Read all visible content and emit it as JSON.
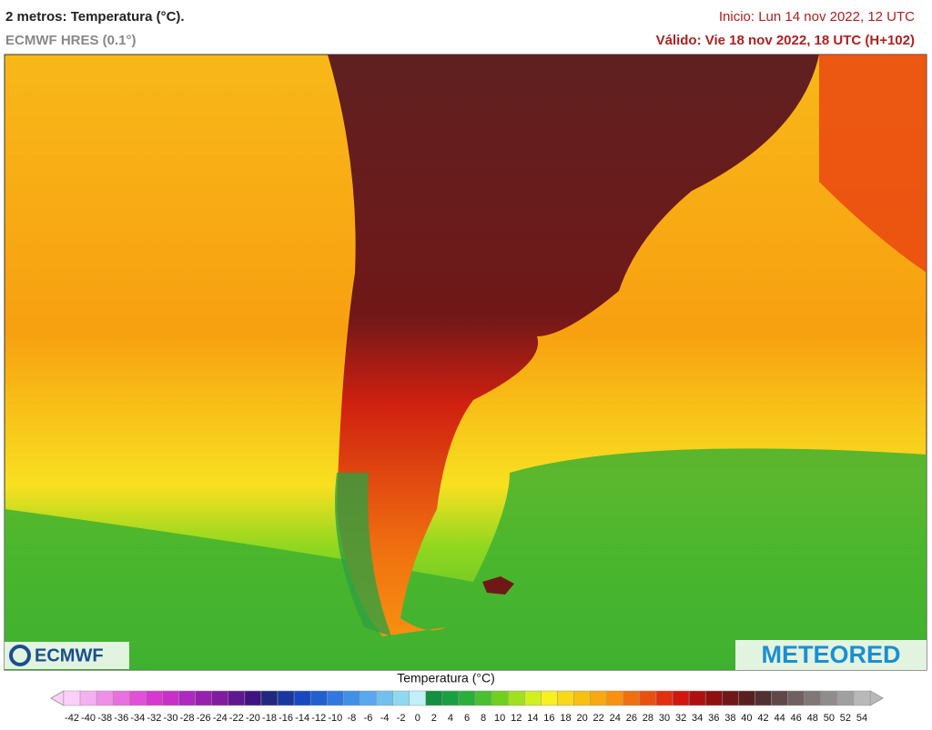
{
  "header": {
    "title": "2 metros: Temperatura (°C).",
    "model": "ECMWF HRES (0.1°)",
    "init": "Inicio: Lun 14 nov 2022, 12 UTC",
    "valid": "Válido: Vie 18 nov 2022, 18 UTC (H+102)"
  },
  "logos": {
    "left": "ECMWF",
    "right": "METEORED"
  },
  "legend": {
    "title": "Temperatura (°C)",
    "ticks": [
      -42,
      -40,
      -38,
      -36,
      -34,
      -32,
      -30,
      -28,
      -26,
      -24,
      -22,
      -20,
      -18,
      -16,
      -14,
      -12,
      -10,
      -8,
      -6,
      -4,
      -2,
      0,
      2,
      4,
      6,
      8,
      10,
      12,
      14,
      16,
      18,
      20,
      22,
      24,
      26,
      28,
      30,
      32,
      34,
      36,
      38,
      40,
      42,
      44,
      46,
      48,
      50,
      52,
      54
    ],
    "colors": [
      "#fbd0f8",
      "#f4b0f0",
      "#ee90e8",
      "#e870e0",
      "#e050d8",
      "#d838d0",
      "#c830c8",
      "#b028c0",
      "#9820b0",
      "#801ca0",
      "#601890",
      "#401480",
      "#202880",
      "#1838a0",
      "#1848c0",
      "#2060d0",
      "#3078e0",
      "#4090e8",
      "#58a8f0",
      "#70c0f0",
      "#90d8f0",
      "#c0f0f8",
      "#109040",
      "#18a040",
      "#28b038",
      "#48c030",
      "#70d020",
      "#a0e020",
      "#d0f020",
      "#f8f020",
      "#f8d818",
      "#f8c010",
      "#f8a810",
      "#f89010",
      "#f07010",
      "#e85010",
      "#e03010",
      "#d01810",
      "#b01010",
      "#901010",
      "#701818",
      "#582020",
      "#503030",
      "#604848",
      "#706060",
      "#807878",
      "#908c8c",
      "#a0a0a0",
      "#b8b8b8"
    ]
  }
}
